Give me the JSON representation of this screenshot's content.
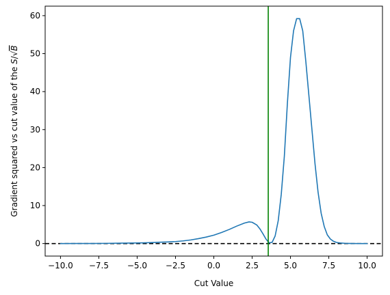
{
  "chart_data": {
    "type": "line",
    "xlabel": "Cut Value",
    "ylabel_parts": {
      "prefix": "Gradient squared vs cut value of the ",
      "s": "S",
      "slash": "/",
      "b": "B"
    },
    "xlim": [
      -11,
      11
    ],
    "ylim": [
      -3.3,
      62.5
    ],
    "xticks": [
      -10,
      -7.5,
      -5,
      -2.5,
      0,
      2.5,
      5,
      7.5,
      10
    ],
    "xtick_labels": [
      "−10.0",
      "−7.5",
      "−5.0",
      "−2.5",
      "0.0",
      "2.5",
      "5.0",
      "7.5",
      "10.0"
    ],
    "yticks": [
      0,
      10,
      20,
      30,
      40,
      50,
      60
    ],
    "ytick_labels": [
      "0",
      "10",
      "20",
      "30",
      "40",
      "50",
      "60"
    ],
    "series": [
      {
        "color": "#1f77b4",
        "x": [
          -10.0,
          -9.0,
          -8.0,
          -7.0,
          -6.0,
          -5.0,
          -4.5,
          -4.0,
          -3.5,
          -3.0,
          -2.5,
          -2.0,
          -1.5,
          -1.0,
          -0.5,
          0.0,
          0.5,
          1.0,
          1.5,
          2.0,
          2.3,
          2.5,
          2.8,
          3.0,
          3.2,
          3.4,
          3.6,
          3.8,
          4.0,
          4.2,
          4.4,
          4.6,
          4.8,
          5.0,
          5.2,
          5.4,
          5.6,
          5.8,
          6.0,
          6.2,
          6.4,
          6.6,
          6.8,
          7.0,
          7.2,
          7.4,
          7.6,
          7.8,
          8.0,
          8.3,
          8.6,
          9.0,
          9.5,
          10.0
        ],
        "y": [
          0.0,
          0.01,
          0.02,
          0.05,
          0.1,
          0.15,
          0.2,
          0.27,
          0.35,
          0.42,
          0.52,
          0.7,
          0.95,
          1.3,
          1.7,
          2.2,
          2.9,
          3.7,
          4.6,
          5.4,
          5.7,
          5.6,
          4.9,
          3.9,
          2.6,
          1.2,
          0.2,
          0.3,
          2.0,
          6.0,
          13.0,
          23.0,
          37.0,
          49.0,
          56.0,
          59.2,
          59.2,
          56.0,
          48.0,
          39.0,
          30.0,
          21.0,
          13.5,
          8.0,
          4.5,
          2.3,
          1.2,
          0.6,
          0.3,
          0.12,
          0.05,
          0.02,
          0.0,
          0.0
        ]
      }
    ],
    "hline": {
      "y": 0,
      "color": "#000000",
      "style": "dashed"
    },
    "vline": {
      "x": 3.55,
      "color": "#008000",
      "style": "solid"
    },
    "grid": false
  }
}
